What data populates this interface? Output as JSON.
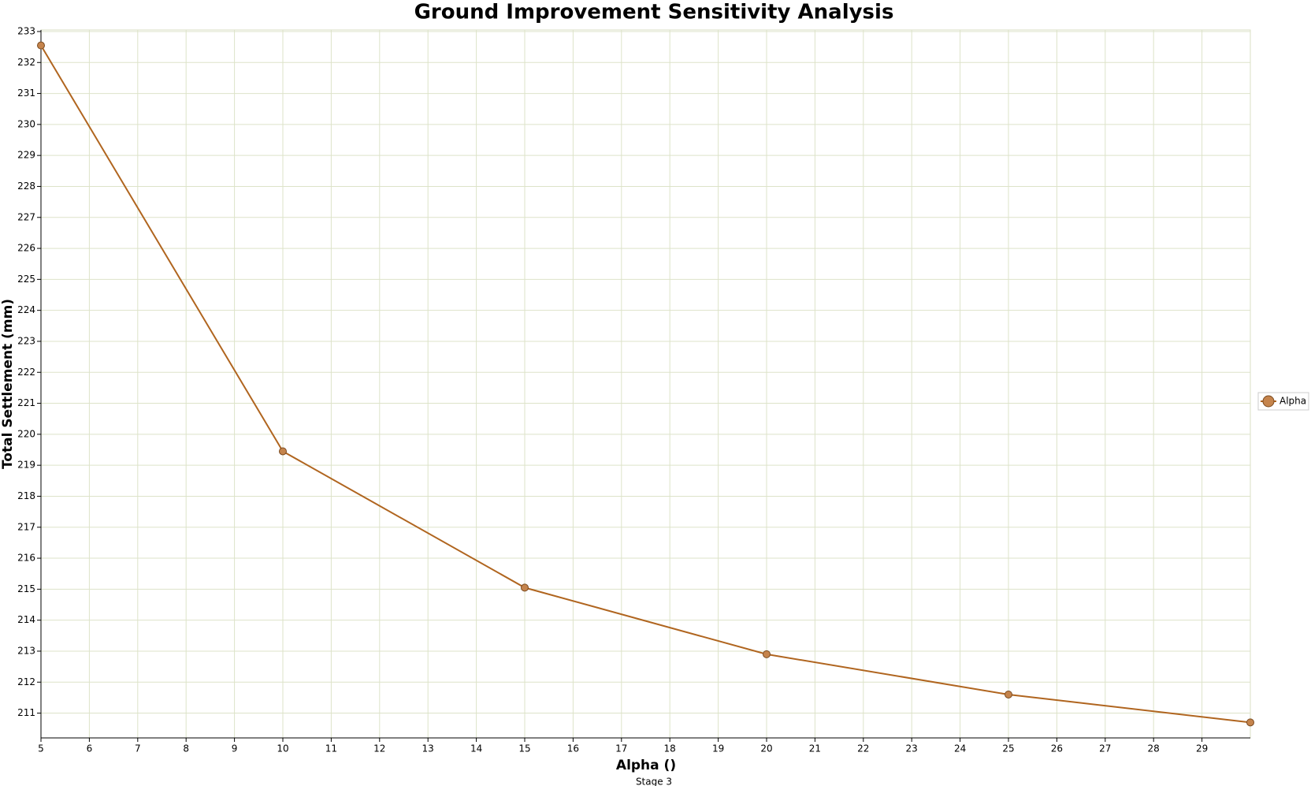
{
  "chart_data": {
    "type": "line",
    "title": "Ground Improvement Sensitivity Analysis",
    "x_label": "Alpha ()",
    "y_label": "Total Settlement (mm)",
    "caption": "Stage 3",
    "x": [
      5,
      10,
      15,
      20,
      25,
      30
    ],
    "series": [
      {
        "name": "Alpha",
        "color": "#b0651f",
        "marker_color": "#c5844c",
        "values": [
          232.55,
          219.45,
          215.05,
          212.9,
          211.6,
          210.7
        ]
      }
    ],
    "xlim": [
      5,
      30
    ],
    "xticks": [
      5,
      6,
      7,
      8,
      9,
      10,
      11,
      12,
      13,
      14,
      15,
      16,
      17,
      18,
      19,
      20,
      21,
      22,
      23,
      24,
      25,
      26,
      27,
      28,
      29
    ],
    "ylim": [
      210.2,
      233.05
    ],
    "yticks": [
      211,
      212,
      213,
      214,
      215,
      216,
      217,
      218,
      219,
      220,
      221,
      222,
      223,
      224,
      225,
      226,
      227,
      228,
      229,
      230,
      231,
      232,
      233
    ],
    "grid": true,
    "legend": "right"
  }
}
